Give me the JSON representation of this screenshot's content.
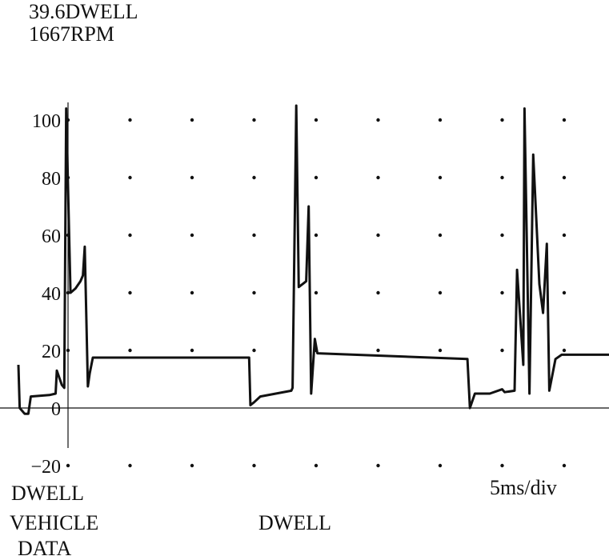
{
  "readouts": {
    "dwell": "39.6DWELL",
    "rpm": "1667RPM"
  },
  "labels": {
    "dwell_vehicle": "DWELL",
    "vehicle": "VEHICLE",
    "data": "DATA",
    "dwell_center": "DWELL",
    "timebase": "5ms/div"
  },
  "colors": {
    "trace": "#111111",
    "grid": "#111111",
    "background": "#ffffff"
  },
  "chart_data": {
    "type": "line",
    "title": "",
    "xlabel": "",
    "ylabel": "",
    "x_units": "ms",
    "ylim": [
      -20,
      105
    ],
    "yticks": [
      {
        "value": 100,
        "label": "100"
      },
      {
        "value": 80,
        "label": "80"
      },
      {
        "value": 60,
        "label": "60"
      },
      {
        "value": 40,
        "label": "40"
      },
      {
        "value": 20,
        "label": "20"
      },
      {
        "value": 0,
        "label": "0"
      },
      {
        "value": -20,
        "label": "−20"
      }
    ],
    "xlim": [
      -4.1,
      44.5
    ],
    "grid_dots_x": [
      0,
      5,
      10,
      15,
      20,
      25,
      30,
      35,
      40
    ],
    "grid_dots_y": [
      100,
      80,
      60,
      40,
      20,
      -20
    ],
    "series": [
      {
        "values": [
          [
            -4.0,
            15
          ],
          [
            -3.9,
            0
          ],
          [
            -3.5,
            -2
          ],
          [
            -3.2,
            -2
          ],
          [
            -3.0,
            4
          ],
          [
            -1.5,
            4.5
          ],
          [
            -1.0,
            5
          ],
          [
            -0.9,
            13
          ],
          [
            -0.5,
            8
          ],
          [
            -0.3,
            7
          ],
          [
            -0.15,
            104
          ],
          [
            0.2,
            40
          ],
          [
            0.6,
            41.5
          ],
          [
            1.0,
            44
          ],
          [
            1.2,
            46
          ],
          [
            1.35,
            56
          ],
          [
            1.6,
            7.5
          ],
          [
            1.75,
            12
          ],
          [
            2.0,
            17.5
          ],
          [
            3.0,
            17.5
          ],
          [
            14.6,
            17.5
          ],
          [
            14.7,
            1
          ],
          [
            15.0,
            2
          ],
          [
            15.5,
            4
          ],
          [
            18.0,
            6
          ],
          [
            18.1,
            7
          ],
          [
            18.4,
            105
          ],
          [
            18.6,
            42
          ],
          [
            19.2,
            44
          ],
          [
            19.4,
            70
          ],
          [
            19.6,
            5
          ],
          [
            19.9,
            24
          ],
          [
            20.1,
            19
          ],
          [
            32.2,
            17
          ],
          [
            32.4,
            0
          ],
          [
            32.8,
            5
          ],
          [
            34.0,
            5
          ],
          [
            35.0,
            6.5
          ],
          [
            35.2,
            5.5
          ],
          [
            36.0,
            6
          ],
          [
            36.2,
            48
          ],
          [
            36.7,
            15
          ],
          [
            36.8,
            104
          ],
          [
            37.2,
            5
          ],
          [
            37.5,
            88
          ],
          [
            38.0,
            43
          ],
          [
            38.3,
            33
          ],
          [
            38.6,
            57
          ],
          [
            38.8,
            6
          ],
          [
            39.3,
            17
          ],
          [
            39.8,
            18.5
          ],
          [
            40.5,
            18.5
          ],
          [
            44.5,
            18.5
          ]
        ]
      }
    ]
  }
}
